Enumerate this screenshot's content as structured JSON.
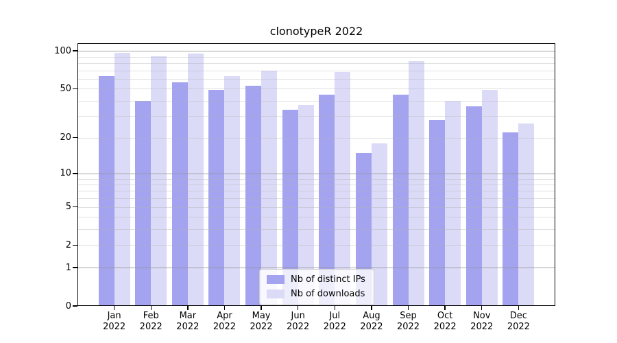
{
  "chart_data": {
    "type": "bar",
    "title": "clonotypeR 2022",
    "categories": [
      "Jan",
      "Feb",
      "Mar",
      "Apr",
      "May",
      "Jun",
      "Jul",
      "Aug",
      "Sep",
      "Oct",
      "Nov",
      "Dec"
    ],
    "year_label": "2022",
    "series": [
      {
        "name": "Nb of distinct IPs",
        "color": "#a3a3f0",
        "values": [
          63,
          40,
          56,
          49,
          53,
          34,
          45,
          15,
          45,
          28,
          36,
          22
        ]
      },
      {
        "name": "Nb of downloads",
        "color": "#dbdbf8",
        "values": [
          96,
          91,
          95,
          63,
          70,
          37,
          68,
          18,
          83,
          40,
          49,
          26
        ]
      }
    ],
    "xlabel": "",
    "ylabel": "",
    "yscale": "log1p",
    "ylim": [
      0,
      114
    ],
    "yticks": [
      100,
      50,
      20,
      10,
      5,
      2,
      1,
      0
    ],
    "major_gridlines": [
      1,
      10,
      100
    ],
    "minor_gridlines": [
      2,
      3,
      4,
      5,
      6,
      7,
      8,
      9,
      20,
      30,
      40,
      50,
      60,
      70,
      80,
      90
    ],
    "grid": true,
    "legend_position": "lower center",
    "axis_color": "#000000",
    "background_color": "#ffffff"
  }
}
